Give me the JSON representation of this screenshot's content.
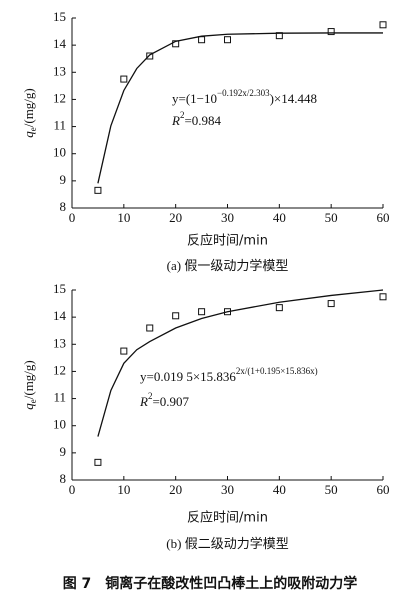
{
  "charts": [
    {
      "chart_data": {
        "type": "scatter",
        "x": [
          5,
          10,
          15,
          20,
          25,
          30,
          40,
          50,
          60
        ],
        "values": [
          8.65,
          12.75,
          13.6,
          14.05,
          14.2,
          14.2,
          14.35,
          14.5,
          14.75
        ],
        "fit": {
          "x": [
            5,
            7.5,
            10,
            12.5,
            15,
            20,
            25,
            30,
            40,
            50,
            60
          ],
          "values": [
            8.91,
            11.03,
            12.33,
            13.14,
            13.64,
            14.14,
            14.33,
            14.4,
            14.44,
            14.45,
            14.45
          ]
        },
        "color": "#111111",
        "xlim": [
          0,
          60
        ],
        "xticks": [
          0,
          10,
          20,
          30,
          40,
          50,
          60
        ],
        "ylim": [
          8,
          15
        ],
        "yticks": [
          8,
          9,
          10,
          11,
          12,
          13,
          14,
          15
        ],
        "xlabel": "反应时间/min",
        "ylabel": [
          "q",
          "e",
          "/(mg/g)"
        ],
        "annotations": [
          [
            "y=(1−10",
            "−0.192x/2.303",
            ")×14.448"
          ],
          [
            "R",
            "2",
            "=0.984"
          ]
        ],
        "subtitle": "(a) 假一级动力学模型"
      }
    },
    {
      "chart_data": {
        "type": "scatter",
        "x": [
          5,
          10,
          15,
          20,
          25,
          30,
          40,
          50,
          60
        ],
        "values": [
          8.65,
          12.75,
          13.6,
          14.05,
          14.2,
          14.2,
          14.35,
          14.5,
          14.75
        ],
        "fit": {
          "x": [
            5,
            7.5,
            10,
            12.5,
            15,
            20,
            25,
            30,
            40,
            50,
            60
          ],
          "values": [
            9.6,
            11.3,
            12.3,
            12.8,
            13.1,
            13.6,
            13.95,
            14.2,
            14.55,
            14.8,
            15.0
          ]
        },
        "color": "#111111",
        "xlim": [
          0,
          60
        ],
        "xticks": [
          0,
          10,
          20,
          30,
          40,
          50,
          60
        ],
        "ylim": [
          8,
          15
        ],
        "yticks": [
          8,
          9,
          10,
          11,
          12,
          13,
          14,
          15
        ],
        "xlabel": "反应时间/min",
        "ylabel": [
          "q",
          "e",
          "/(mg/g)"
        ],
        "annotations": [
          [
            "y=0.019 5×15.836",
            "2x/(1+0.195×15.836x)"
          ],
          [
            "R",
            "2",
            "=0.907"
          ]
        ],
        "subtitle": "(b) 假二级动力学模型"
      }
    }
  ],
  "caption": "图 7　铜离子在酸改性凹凸棒土上的吸附动力学"
}
